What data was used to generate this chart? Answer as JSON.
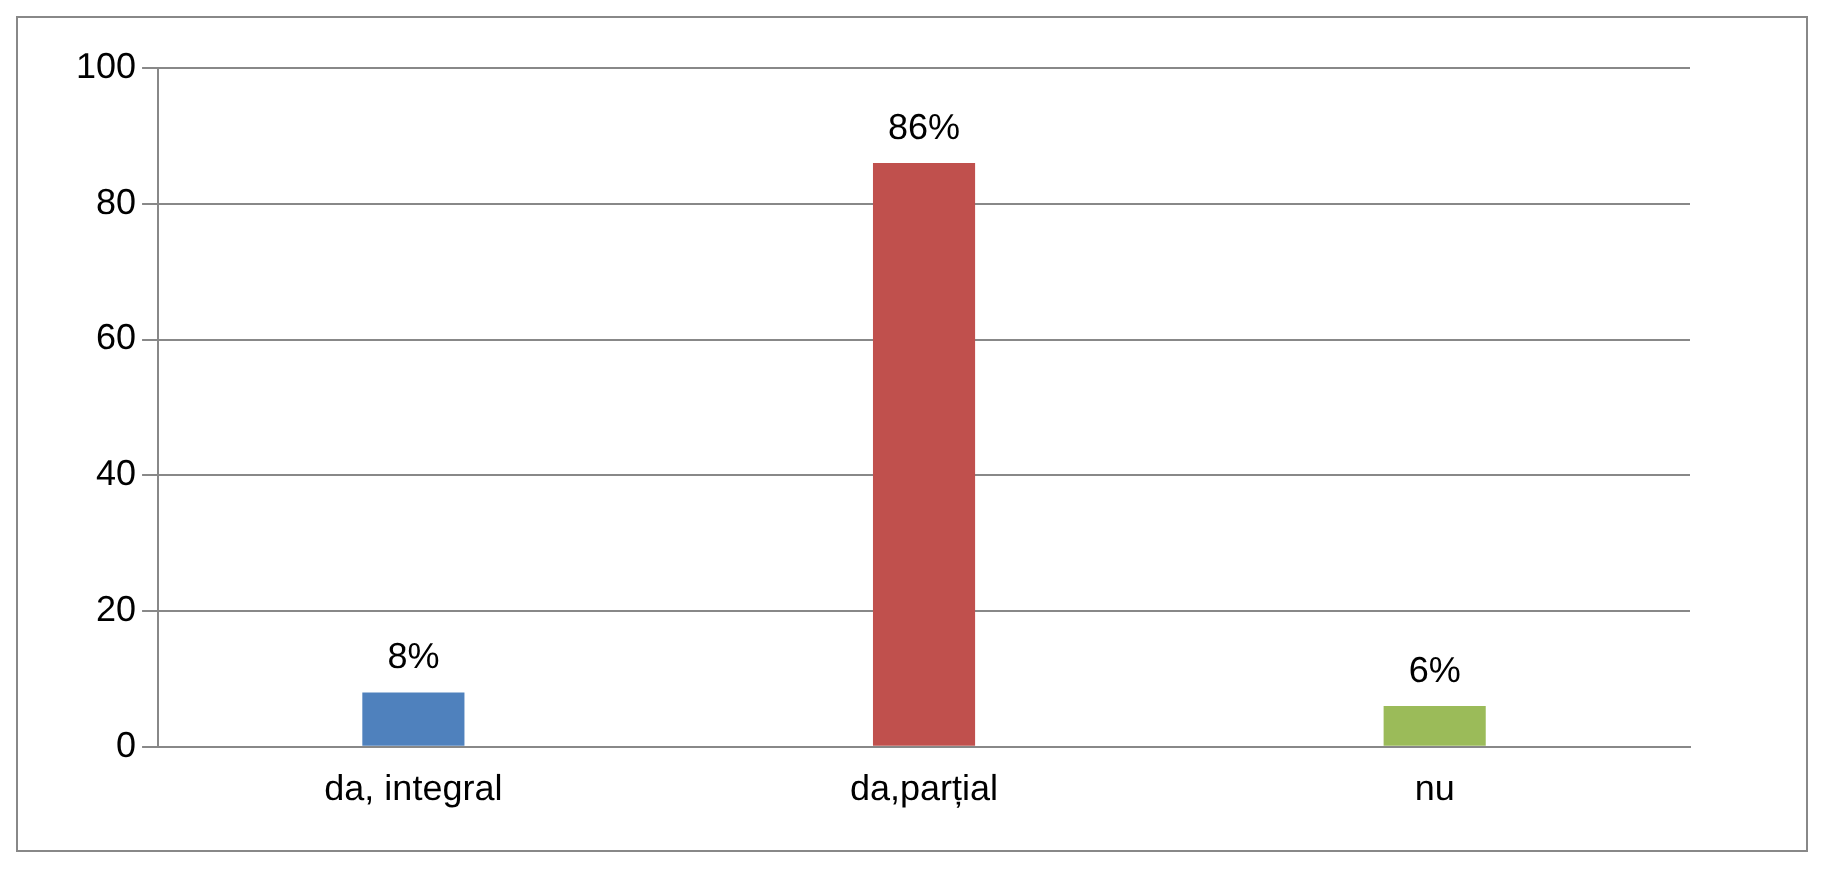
{
  "chart_data": {
    "type": "bar",
    "categories": [
      "da, integral",
      "da,parțial",
      "nu"
    ],
    "values": [
      8,
      86,
      6
    ],
    "colors": [
      "#4f81bd",
      "#c0504d",
      "#9bbb59"
    ],
    "value_labels": [
      "8%",
      "86%",
      "6%"
    ],
    "ylim": [
      0,
      100
    ],
    "yticks": [
      0,
      20,
      40,
      60,
      80,
      100
    ],
    "grid": "y",
    "legend": false
  }
}
